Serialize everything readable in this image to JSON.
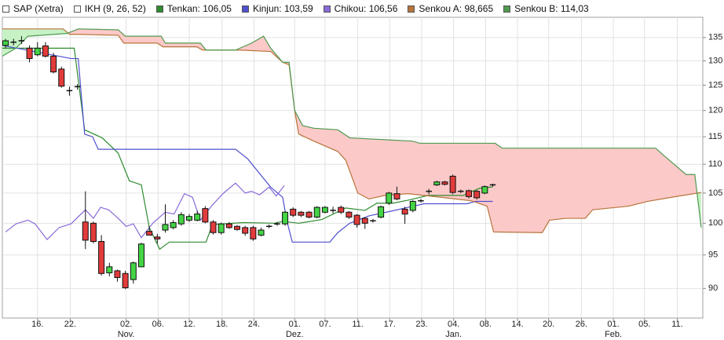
{
  "chart_data": {
    "type": "candlestick",
    "log_scale": true,
    "grid": true,
    "ylim": [
      85.8,
      139.5
    ],
    "yticks": [
      90,
      95,
      100,
      105,
      110,
      115,
      120,
      125,
      130,
      135
    ],
    "xlim": [
      -0.4,
      87.3
    ],
    "xticks": [
      {
        "value": 4.0,
        "label": "16."
      },
      {
        "value": 8.1,
        "label": "22."
      },
      {
        "value": 15.1,
        "label": "02.\nNov."
      },
      {
        "value": 19.1,
        "label": "06."
      },
      {
        "value": 23.0,
        "label": "12."
      },
      {
        "value": 27.1,
        "label": "18."
      },
      {
        "value": 31.1,
        "label": "24."
      },
      {
        "value": 36.2,
        "label": "01.\nDez."
      },
      {
        "value": 40.0,
        "label": "07."
      },
      {
        "value": 44.1,
        "label": "11."
      },
      {
        "value": 48.1,
        "label": "17."
      },
      {
        "value": 52.1,
        "label": "23."
      },
      {
        "value": 56.1,
        "label": "04.\nJan."
      },
      {
        "value": 60.1,
        "label": "08."
      },
      {
        "value": 64.1,
        "label": "14."
      },
      {
        "value": 68.0,
        "label": "20."
      },
      {
        "value": 72.1,
        "label": "26."
      },
      {
        "value": 76.1,
        "label": "01.\nFeb."
      },
      {
        "value": 80.0,
        "label": "05."
      },
      {
        "value": 84.1,
        "label": "11."
      }
    ],
    "candles": {
      "name": "SAP (Xetra)",
      "up_color": "#44d444",
      "down_color": "#e23b3b",
      "x": [
        0,
        1,
        2,
        3,
        4,
        5,
        6,
        7,
        8,
        9,
        10,
        11,
        12,
        13,
        14,
        15,
        16,
        17,
        18,
        19,
        20,
        21,
        22,
        23,
        24,
        25,
        26,
        27,
        28,
        29,
        30,
        31,
        32,
        33,
        34,
        35,
        36,
        37,
        38,
        39,
        40,
        41,
        42,
        43,
        44,
        45,
        46,
        47,
        48,
        49,
        50,
        51,
        52,
        53,
        54,
        55,
        56,
        57,
        58,
        59,
        60,
        61
      ],
      "open": [
        133.3,
        134,
        134.3,
        132.7,
        131.3,
        133.2,
        131,
        128.3,
        123.9,
        124.7,
        100.2,
        100,
        97.1,
        92.3,
        92.6,
        92.2,
        91.3,
        93.2,
        98.7,
        97.8,
        98.9,
        99.3,
        99.9,
        100.5,
        100.5,
        102.4,
        100.2,
        98.5,
        99.9,
        99.5,
        99.3,
        99.3,
        98.1,
        99.5,
        99.9,
        99.9,
        102.3,
        101.8,
        101.8,
        101,
        101.8,
        102.1,
        102.6,
        101.8,
        101.3,
        100.8,
        100.4,
        101,
        103.3,
        104.9,
        102.3,
        102.1,
        103.7,
        105.3,
        106.4,
        106.9,
        107.9,
        105.3,
        105.4,
        105.3,
        105,
        106.4
      ],
      "high": [
        134.7,
        134.7,
        135.3,
        133.3,
        134,
        134,
        131.7,
        128.8,
        124.7,
        125.2,
        105.3,
        100.3,
        98.1,
        93.8,
        92.8,
        92.6,
        94,
        96.9,
        99.5,
        98.3,
        103.1,
        100.5,
        101.8,
        101.5,
        102,
        102.8,
        100.5,
        100.1,
        100.2,
        99.7,
        99.6,
        99.6,
        99.3,
        99.8,
        100.2,
        102,
        102.6,
        102,
        102,
        102.8,
        102.8,
        102.7,
        102.9,
        102,
        101.5,
        101,
        100.7,
        102.9,
        105.2,
        106.1,
        102.7,
        103.8,
        104,
        105.7,
        107.1,
        107.1,
        108.2,
        105.6,
        105.6,
        105.5,
        106.3,
        106.6
      ],
      "low": [
        132.7,
        133.3,
        133.6,
        129.7,
        131,
        130.7,
        127.4,
        124.5,
        122.9,
        124.1,
        95.9,
        96.8,
        91.9,
        91.8,
        91,
        89.9,
        90.7,
        93.2,
        98.1,
        96.8,
        98.5,
        99,
        99.6,
        100.2,
        100.3,
        100,
        98.2,
        98.2,
        99.1,
        98.8,
        98,
        97.2,
        97.9,
        99.2,
        99.6,
        99.6,
        101,
        101,
        100.8,
        100.8,
        101.6,
        101.6,
        101.5,
        100.7,
        99.3,
        99.1,
        100.1,
        100.8,
        103,
        103.8,
        99.9,
        101.8,
        103.4,
        104.8,
        106.2,
        106.3,
        104.8,
        105,
        104.1,
        103.9,
        104.8,
        106.1
      ],
      "close": [
        134.3,
        134,
        134.3,
        130.5,
        132.7,
        131,
        127.7,
        124.8,
        123.9,
        124.7,
        97.3,
        97.1,
        92.2,
        93.2,
        91.6,
        90.1,
        93.8,
        96.7,
        98.1,
        97.5,
        99.8,
        100.1,
        101.4,
        101.1,
        101.5,
        100.2,
        98.5,
        99.9,
        99.3,
        99,
        98.4,
        97.5,
        98.9,
        99.5,
        99.9,
        101.8,
        101.3,
        101.3,
        101,
        102.6,
        102.6,
        102.1,
        101.8,
        101,
        99.8,
        100,
        100.4,
        102.7,
        105,
        104,
        101.5,
        103.6,
        103.7,
        105.3,
        106.9,
        106.5,
        105.1,
        105.3,
        104.4,
        104.2,
        106.1,
        106.4
      ]
    },
    "indicator": "IKH (9, 26, 52)",
    "cloud": {
      "bullish_color": "#c6f2c6",
      "bearish_color": "#fcc9c9"
    },
    "series": [
      {
        "name": "Tenkan: 106,05",
        "color": "#2e8b2e",
        "x": [
          -0.4,
          8.6,
          9.9,
          12.1,
          14.1,
          15.5,
          17.0,
          18.0,
          19.3,
          20.5,
          25.1,
          25.9,
          29.8,
          33.7,
          34.7,
          36.7,
          39.6,
          42.6,
          45.0,
          46.5,
          48.5,
          50.4,
          52.9,
          57.3,
          59.3,
          61
        ],
        "values": [
          132.7,
          132.7,
          116.3,
          114.8,
          112,
          107.1,
          106.4,
          99.3,
          95.9,
          97,
          97,
          99.8,
          100.1,
          100,
          100.3,
          100,
          100.6,
          102.5,
          102.1,
          103.3,
          103.3,
          103.8,
          104.6,
          104.6,
          105.8,
          106.05
        ]
      },
      {
        "name": "Kinjun: 103,59",
        "color": "#5050d0",
        "x": [
          -0.4,
          8.2,
          9.1,
          9.9,
          10.9,
          11.6,
          28.8,
          30.3,
          33.2,
          34.7,
          35.2,
          35.9,
          40.6,
          41.6,
          43.1,
          45.5,
          48,
          50.4,
          52.4,
          57.8,
          58.8,
          61
        ],
        "values": [
          133.3,
          130.5,
          130.5,
          115.5,
          115,
          112.7,
          112.7,
          111,
          106,
          104.3,
          100.5,
          97,
          97,
          98.5,
          100,
          101.2,
          101.9,
          102.6,
          103.2,
          103.2,
          103.6,
          103.59
        ]
      },
      {
        "name": "Chikou: 106,56",
        "color": "#8a6ad8",
        "x": [
          0,
          1.3,
          2.8,
          3.7,
          5.2,
          6.7,
          8.2,
          10,
          11,
          11.9,
          12.9,
          14.1,
          15.1,
          16.0,
          17.0,
          18.5,
          20,
          21.1,
          22.4,
          23.4,
          24.4,
          25.9,
          27.3,
          28.8,
          30,
          30.8,
          31.8,
          33,
          33.9,
          34.9
        ],
        "values": [
          98.6,
          99.9,
          100.5,
          99.9,
          97.4,
          99.3,
          99.9,
          102.2,
          100.8,
          102.6,
          102.2,
          100.8,
          99.5,
          99.9,
          97.7,
          100.1,
          101.8,
          101.5,
          104.9,
          104.3,
          100.5,
          103,
          105,
          106.7,
          105,
          105.3,
          104.7,
          106,
          104.5,
          106.3
        ]
      },
      {
        "name": "Senkou A: 98,665",
        "color": "#b8743a",
        "x": [
          -0.4,
          7.2,
          8.0,
          9.1,
          14.1,
          14.8,
          19.0,
          19.7,
          23.9,
          24.7,
          29.3,
          33.2,
          34.7,
          35.5,
          36.2,
          36.7,
          38.6,
          41.6,
          42.6,
          44.1,
          45.5,
          47.5,
          50.4,
          54.4,
          58.3,
          60.3,
          61.1,
          67.2,
          68.1,
          70.1,
          72.6,
          73.5,
          78.0,
          80.4,
          83.9,
          87.1
        ],
        "values": [
          136.9,
          136.9,
          135.7,
          135.7,
          135.5,
          133.8,
          133.8,
          133,
          133,
          132.3,
          132.3,
          132,
          129.7,
          129.2,
          120,
          115.5,
          114.2,
          112.3,
          110.7,
          105,
          104,
          104.6,
          104.9,
          104.3,
          103.7,
          102.8,
          98.6,
          98.5,
          100.5,
          100.8,
          100.8,
          102.2,
          102.8,
          103.6,
          104.4,
          105.1
        ]
      },
      {
        "name": "Senkou B: 114,03",
        "color": "#4f9a4f",
        "x": [
          -0.4,
          1.3,
          2.8,
          7.7,
          9.1,
          14.1,
          15.0,
          19.5,
          20.0,
          24.4,
          25.1,
          28.8,
          30.8,
          32.3,
          33.2,
          34.7,
          35.5,
          36.2,
          37.2,
          38.6,
          41.6,
          43.1,
          50.9,
          51.9,
          61.3,
          62.2,
          81.4,
          82.4,
          85.2,
          86.3,
          87.1
        ],
        "values": [
          131,
          132.7,
          135.3,
          135.9,
          136.9,
          136.7,
          135.3,
          135.3,
          133.8,
          133.8,
          132.3,
          132.3,
          133.8,
          135.3,
          132.7,
          129.7,
          129.7,
          120,
          117.1,
          116.6,
          116.3,
          114.8,
          114.2,
          113.8,
          113.8,
          112.9,
          112.9,
          111.6,
          108.2,
          108.2,
          99.3
        ]
      }
    ]
  }
}
